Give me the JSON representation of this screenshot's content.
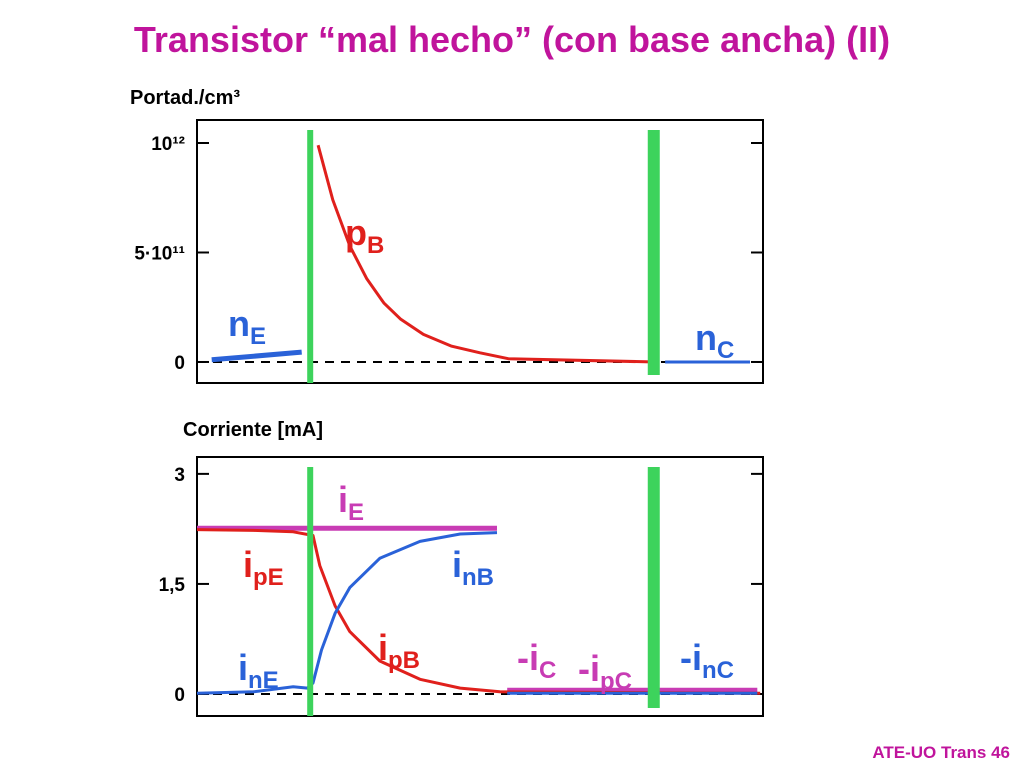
{
  "title": "Transistor “mal hecho” (con base ancha) (II)",
  "footer": "ATE-UO Trans 46",
  "chart_data": [
    {
      "type": "line",
      "y_label": "Portad./cm³",
      "xlim": [
        0,
        100
      ],
      "ylim": [
        -96000000000.0,
        1105000000000.0
      ],
      "yticks": [
        0,
        {
          "value": 500000000000.0,
          "label": "5·10¹¹"
        },
        {
          "value": 1000000000000.0,
          "label": "10¹²"
        }
      ],
      "junctions": [
        20,
        80.7
      ],
      "junction_color": "#3dd35c",
      "zero_line": true,
      "series": [
        {
          "color": "#2a62d8",
          "x": [
            2.6,
            18.5
          ],
          "values": [
            10000000000.0,
            45000000000.0
          ]
        },
        {
          "color": "#e0201c",
          "x": [
            21.4,
            24,
            27,
            30,
            33,
            36,
            40,
            45,
            50,
            55,
            81
          ],
          "values": [
            990000000000.0,
            740000000000.0,
            530000000000.0,
            380000000000.0,
            270000000000.0,
            195000000000.0,
            126000000000.0,
            72000000000.0,
            42000000000.0,
            15000000000.0,
            0
          ]
        },
        {
          "color": "#2a62d8",
          "x": [
            82.7,
            97.7
          ],
          "values": [
            0,
            0
          ]
        }
      ],
      "annotations": [
        {
          "text": "p",
          "sub": "B",
          "color": "#e0201c"
        },
        {
          "text": "n",
          "sub": "E",
          "color": "#2a62d8"
        },
        {
          "text": "n",
          "sub": "C",
          "color": "#2a62d8"
        }
      ]
    },
    {
      "type": "line",
      "y_label": "Corriente [mA]",
      "xlim": [
        0,
        100
      ],
      "ylim": [
        -0.3,
        3.23
      ],
      "yticks": [
        0,
        {
          "value": 1.5,
          "label": "1,5"
        },
        3
      ],
      "junctions": [
        20,
        80.7
      ],
      "junction_color": "#3dd35c",
      "zero_line": true,
      "series": [
        {
          "color": "#c83cb4",
          "x": [
            0,
            53
          ],
          "values": [
            2.26,
            2.26
          ]
        },
        {
          "color": "#c83cb4",
          "x": [
            54.8,
            99
          ],
          "values": [
            0.05,
            0.05
          ]
        },
        {
          "color": "#e0201c",
          "x": [
            0,
            10,
            17,
            20.5,
            21.7,
            24.4,
            27,
            32.3,
            39.4,
            46.5,
            53.5,
            99.5
          ],
          "values": [
            2.24,
            2.23,
            2.21,
            2.16,
            1.75,
            1.2,
            0.85,
            0.45,
            0.2,
            0.08,
            0.03,
            0.01
          ]
        },
        {
          "color": "#2a62d8",
          "x": [
            0,
            10,
            17,
            19.5,
            20.5,
            22,
            24.4,
            27,
            32.3,
            39.4,
            46.5,
            53
          ],
          "values": [
            0.01,
            0.03,
            0.1,
            0.08,
            0.15,
            0.6,
            1.1,
            1.45,
            1.85,
            2.08,
            2.18,
            2.2
          ]
        },
        {
          "color": "#2a62d8",
          "x": [
            54.8,
            99
          ],
          "values": [
            0.01,
            0.01
          ]
        }
      ],
      "annotations": [
        {
          "text": "i",
          "sub": "E",
          "color": "#c83cb4"
        },
        {
          "text": "i",
          "sub": "pE",
          "color": "#e0201c"
        },
        {
          "text": "i",
          "sub": "nB",
          "color": "#2a62d8"
        },
        {
          "text": "i",
          "sub": "pB",
          "color": "#e0201c"
        },
        {
          "text": "i",
          "sub": "nE",
          "color": "#2a62d8"
        },
        {
          "text": "-i",
          "sub": "C",
          "color": "#c83cb4"
        },
        {
          "text": "-i",
          "sub": "pC",
          "color": "#c83cb4"
        },
        {
          "text": "-i",
          "sub": "nC",
          "color": "#2a62d8"
        }
      ]
    }
  ]
}
